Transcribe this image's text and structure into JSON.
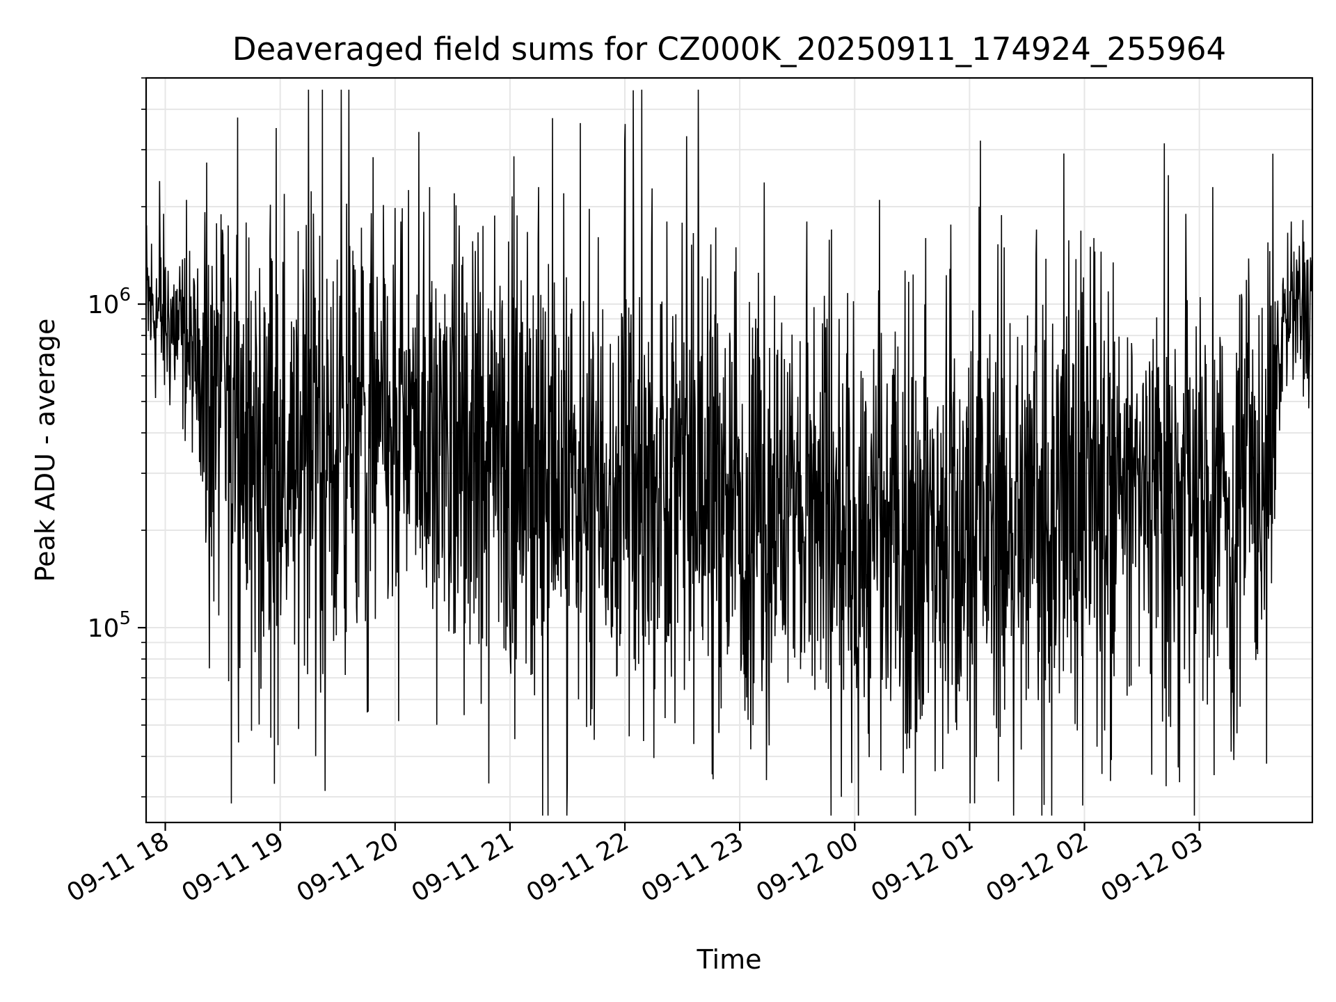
{
  "chart_data": {
    "type": "line",
    "title": "Deaveraged field sums for CZ000K_20250911_174924_255964",
    "xlabel": "Time",
    "ylabel": "Peak ADU - average",
    "yscale": "log",
    "grid": true,
    "xlim": [
      "2025-09-11 17:50",
      "2025-09-12 03:59"
    ],
    "ylim": [
      25000,
      5000000
    ],
    "x_ticks": [
      "09-11 18",
      "09-11 19",
      "09-11 20",
      "09-11 21",
      "09-11 22",
      "09-11 23",
      "09-12 00",
      "09-12 01",
      "09-12 02",
      "09-12 03"
    ],
    "y_ticks": [
      {
        "value": 100000,
        "base": "10",
        "exp": "5"
      },
      {
        "value": 1000000,
        "base": "10",
        "exp": "6"
      }
    ],
    "series": [
      {
        "color": "#000000",
        "x": [
          "2025-09-11 17:50",
          "2025-09-11 18:05",
          "2025-09-11 18:20",
          "2025-09-11 18:35",
          "2025-09-11 18:50",
          "2025-09-11 19:05",
          "2025-09-11 19:30",
          "2025-09-11 20:00",
          "2025-09-11 20:30",
          "2025-09-11 21:00",
          "2025-09-11 21:30",
          "2025-09-11 22:00",
          "2025-09-11 22:30",
          "2025-09-11 23:00",
          "2025-09-11 23:30",
          "2025-09-12 00:00",
          "2025-09-12 00:30",
          "2025-09-12 01:00",
          "2025-09-12 01:30",
          "2025-09-12 02:00",
          "2025-09-12 02:30",
          "2025-09-12 03:00",
          "2025-09-12 03:30",
          "2025-09-12 03:45",
          "2025-09-12 03:59"
        ],
        "values": [
          1000000,
          850000,
          600000,
          420000,
          330000,
          360000,
          380000,
          380000,
          390000,
          330000,
          280000,
          300000,
          270000,
          240000,
          230000,
          180000,
          190000,
          210000,
          230000,
          250000,
          260000,
          260000,
          250000,
          900000,
          1000000
        ],
        "spikes_high": [
          [
            "2025-09-11 17:57",
            2400000
          ],
          [
            "2025-09-11 18:11",
            2100000
          ],
          [
            "2025-09-11 18:58",
            3500000
          ],
          [
            "2025-09-11 20:03",
            1800000
          ],
          [
            "2025-09-11 20:18",
            2300000
          ],
          [
            "2025-09-11 20:31",
            2200000
          ],
          [
            "2025-09-11 21:15",
            2300000
          ],
          [
            "2025-09-11 21:28",
            2200000
          ],
          [
            "2025-09-11 22:00",
            3200000
          ],
          [
            "2025-09-11 22:22",
            1800000
          ],
          [
            "2025-09-11 23:35",
            1800000
          ],
          [
            "2025-09-11 23:48",
            1700000
          ],
          [
            "2025-09-12 00:13",
            2100000
          ],
          [
            "2025-09-12 00:37",
            1600000
          ],
          [
            "2025-09-12 01:05",
            2000000
          ],
          [
            "2025-09-12 01:35",
            1700000
          ],
          [
            "2025-09-12 02:05",
            1600000
          ],
          [
            "2025-09-12 02:53",
            1900000
          ],
          [
            "2025-09-12 03:07",
            2300000
          ],
          [
            "2025-09-12 03:48",
            1800000
          ]
        ],
        "spikes_low": [
          [
            "2025-09-11 18:45",
            48000
          ],
          [
            "2025-09-11 18:39",
            75000
          ],
          [
            "2025-09-11 19:21",
            63000
          ],
          [
            "2025-09-11 19:46",
            55000
          ],
          [
            "2025-09-11 21:30",
            33000
          ],
          [
            "2025-09-11 21:44",
            45000
          ],
          [
            "2025-09-11 22:46",
            34000
          ],
          [
            "2025-09-11 23:53",
            30000
          ],
          [
            "2025-09-12 00:07",
            47000
          ],
          [
            "2025-09-12 00:42",
            36000
          ],
          [
            "2025-09-12 01:27",
            42000
          ],
          [
            "2025-09-12 02:14",
            39000
          ],
          [
            "2025-09-12 02:49",
            37000
          ],
          [
            "2025-09-12 03:18",
            39000
          ],
          [
            "2025-09-12 03:35",
            38000
          ]
        ]
      }
    ]
  }
}
